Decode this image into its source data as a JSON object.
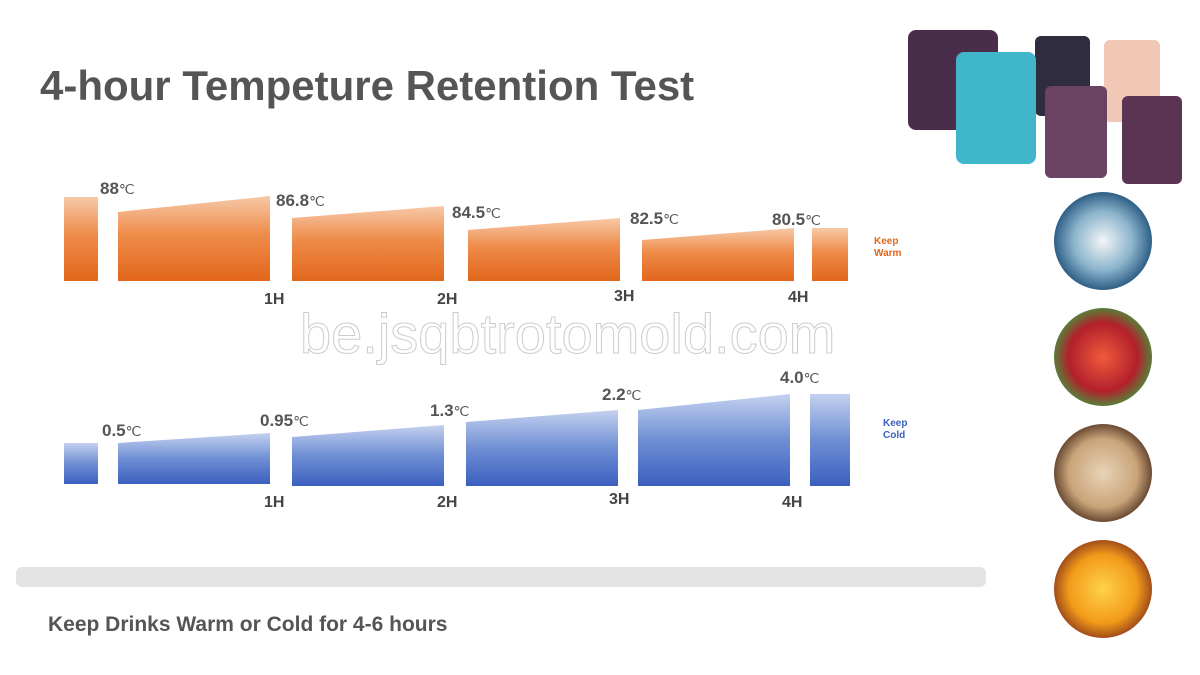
{
  "title": "4-hour Tempeture Retention Test",
  "watermark": "be.jsqbtrotomold.com",
  "unit": "℃",
  "warm": {
    "label": "Keep Warm",
    "readings": [
      "88",
      "86.8",
      "84.5",
      "82.5",
      "80.5"
    ],
    "hours": [
      "1H",
      "2H",
      "3H",
      "4H"
    ]
  },
  "cold": {
    "label": "Keep Cold",
    "readings": [
      "0.5",
      "0.95",
      "1.3",
      "2.2",
      "4.0"
    ],
    "hours": [
      "1H",
      "2H",
      "3H",
      "4H"
    ]
  },
  "footer": "Keep Drinks Warm or Cold for 4-6 hours"
}
